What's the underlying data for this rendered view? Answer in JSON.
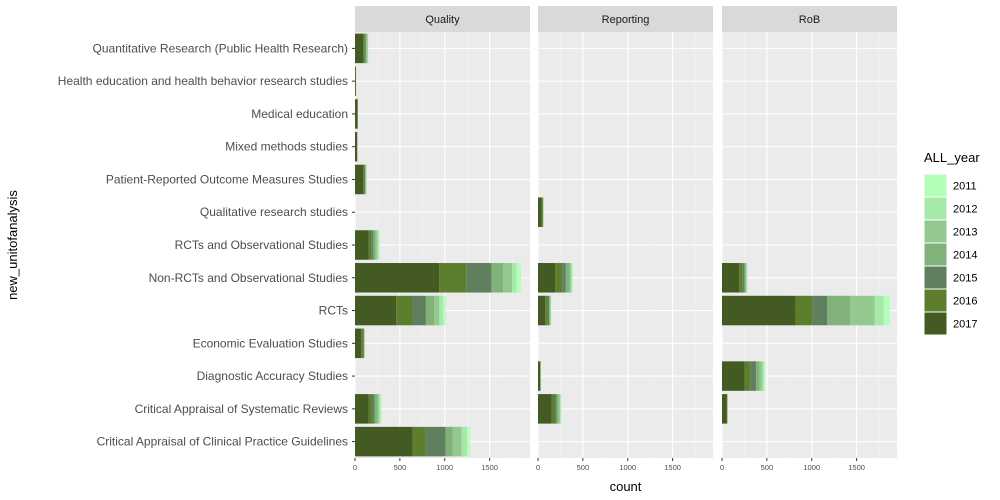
{
  "chart_data": {
    "type": "bar",
    "orientation": "horizontal",
    "stacked": true,
    "grid": true,
    "legend_placement": "right",
    "xlabel": "count",
    "ylabel": "new_unitofanalysis",
    "xlim": [
      0,
      1950
    ],
    "x_ticks": [
      "0",
      "500",
      "1000",
      "1500"
    ],
    "x_tick_values": [
      0,
      500,
      1000,
      1500
    ],
    "panels": [
      "Quality",
      "Reporting",
      "RoB"
    ],
    "categories": [
      "Quantitative Research (Public Health Research)",
      "Health education and health behavior research studies",
      "Medical education",
      "Mixed methods studies",
      "Patient-Reported Outcome Measures Studies",
      "Qualitative research studies",
      "RCTs and Observational Studies",
      "Non-RCTs and Observational Studies",
      "RCTs",
      "Economic Evaluation Studies",
      "Diagnostic Accuracy Studies",
      "Critical Appraisal of Systematic Reviews",
      "Critical Appraisal of Clinical Practice Guidelines"
    ],
    "legend": {
      "title": "ALL_year",
      "items": [
        {
          "label": "2011",
          "color": "#b3ffb8"
        },
        {
          "label": "2012",
          "color": "#a6e9a8"
        },
        {
          "label": "2013",
          "color": "#93c98f"
        },
        {
          "label": "2014",
          "color": "#80b27a"
        },
        {
          "label": "2015",
          "color": "#5f7f5e"
        },
        {
          "label": "2016",
          "color": "#5d7f2d"
        },
        {
          "label": "2017",
          "color": "#435a23"
        }
      ]
    },
    "series_order": [
      "2017",
      "2016",
      "2015",
      "2014",
      "2013",
      "2012",
      "2011"
    ],
    "data": {
      "Quality": {
        "Quantitative Research (Public Health Research)": [
          90,
          20,
          10,
          10,
          10,
          5,
          5
        ],
        "Health education and health behavior research studies": [
          10,
          0,
          0,
          0,
          0,
          0,
          0
        ],
        "Medical education": [
          30,
          0,
          0,
          0,
          0,
          0,
          0
        ],
        "Mixed methods studies": [
          25,
          0,
          0,
          0,
          0,
          0,
          0
        ],
        "Patient-Reported Outcome Measures Studies": [
          90,
          15,
          10,
          5,
          5,
          5,
          0
        ],
        "Qualitative research studies": [
          0,
          0,
          0,
          0,
          0,
          0,
          0
        ],
        "RCTs and Observational Studies": [
          150,
          30,
          25,
          25,
          20,
          15,
          10
        ],
        "Non-RCTs and Observational Studies": [
          940,
          300,
          280,
          130,
          100,
          50,
          50
        ],
        "RCTs": [
          460,
          180,
          150,
          90,
          60,
          40,
          30
        ],
        "Economic Evaluation Studies": [
          70,
          20,
          10,
          5,
          0,
          0,
          0
        ],
        "Diagnostic Accuracy Studies": [
          0,
          0,
          0,
          0,
          0,
          0,
          0
        ],
        "Critical Appraisal of Systematic Reviews": [
          150,
          40,
          30,
          30,
          20,
          15,
          10
        ],
        "Critical Appraisal of Clinical Practice Guidelines": [
          640,
          150,
          220,
          80,
          100,
          60,
          30
        ]
      },
      "Reporting": {
        "Quantitative Research (Public Health Research)": [
          0,
          0,
          0,
          0,
          0,
          0,
          0
        ],
        "Health education and health behavior research studies": [
          0,
          0,
          0,
          0,
          0,
          0,
          0
        ],
        "Medical education": [
          0,
          0,
          0,
          0,
          0,
          0,
          0
        ],
        "Mixed methods studies": [
          0,
          0,
          0,
          0,
          0,
          0,
          0
        ],
        "Patient-Reported Outcome Measures Studies": [
          0,
          0,
          0,
          0,
          0,
          0,
          0
        ],
        "Qualitative research studies": [
          40,
          10,
          5,
          5,
          0,
          0,
          0
        ],
        "RCTs and Observational Studies": [
          0,
          0,
          0,
          0,
          0,
          0,
          0
        ],
        "Non-RCTs and Observational Studies": [
          190,
          80,
          40,
          40,
          20,
          10,
          10
        ],
        "RCTs": [
          80,
          30,
          15,
          10,
          5,
          5,
          5
        ],
        "Economic Evaluation Studies": [
          0,
          0,
          0,
          0,
          0,
          0,
          0
        ],
        "Diagnostic Accuracy Studies": [
          25,
          5,
          0,
          0,
          0,
          0,
          0
        ],
        "Critical Appraisal of Systematic Reviews": [
          150,
          40,
          20,
          20,
          15,
          10,
          5
        ],
        "Critical Appraisal of Clinical Practice Guidelines": [
          0,
          0,
          0,
          0,
          0,
          0,
          0
        ]
      },
      "RoB": {
        "Quantitative Research (Public Health Research)": [
          0,
          0,
          0,
          0,
          0,
          0,
          0
        ],
        "Health education and health behavior research studies": [
          0,
          0,
          0,
          0,
          0,
          0,
          0
        ],
        "Medical education": [
          0,
          0,
          0,
          0,
          0,
          0,
          0
        ],
        "Mixed methods studies": [
          0,
          0,
          0,
          0,
          0,
          0,
          0
        ],
        "Patient-Reported Outcome Measures Studies": [
          0,
          0,
          0,
          0,
          0,
          0,
          0
        ],
        "Qualitative research studies": [
          0,
          0,
          0,
          0,
          0,
          0,
          0
        ],
        "RCTs and Observational Studies": [
          0,
          0,
          0,
          0,
          0,
          0,
          0
        ],
        "Non-RCTs and Observational Studies": [
          190,
          40,
          20,
          15,
          10,
          5,
          5
        ],
        "RCTs": [
          820,
          190,
          160,
          260,
          270,
          100,
          70
        ],
        "Economic Evaluation Studies": [
          0,
          0,
          0,
          0,
          0,
          0,
          0
        ],
        "Diagnostic Accuracy Studies": [
          250,
          70,
          60,
          40,
          30,
          20,
          10
        ],
        "Critical Appraisal of Systematic Reviews": [
          50,
          10,
          0,
          0,
          0,
          0,
          0
        ],
        "Critical Appraisal of Clinical Practice Guidelines": [
          0,
          0,
          0,
          0,
          0,
          0,
          0
        ]
      }
    }
  }
}
